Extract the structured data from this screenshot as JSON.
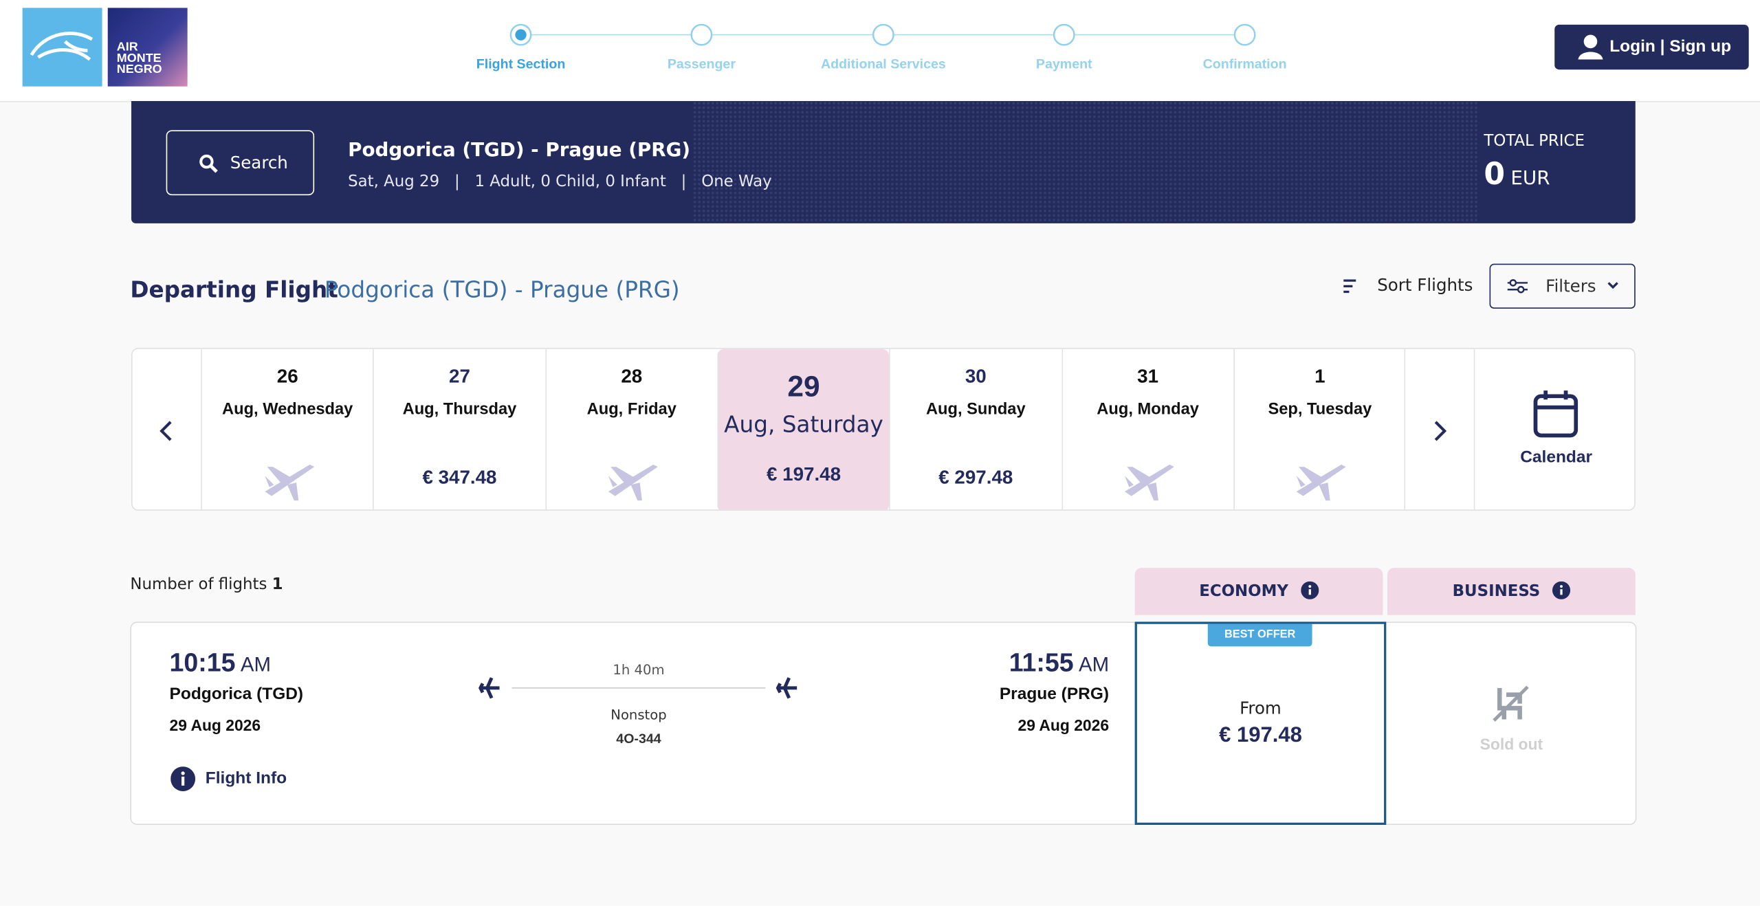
{
  "header": {
    "logo": [
      "AIR",
      "MONTE",
      "NEGRO"
    ],
    "steps": [
      "Flight Section",
      "Passenger",
      "Additional Services",
      "Payment",
      "Confirmation"
    ],
    "login": "Login | Sign up"
  },
  "search_bar": {
    "button": "Search",
    "route": "Podgorica (TGD) - Prague (PRG)",
    "date": "Sat, Aug 29",
    "separator": "|",
    "passengers": "1 Adult, 0 Child, 0 Infant",
    "trip_type": "One Way",
    "total_label": "TOTAL PRICE",
    "total_amount": "0",
    "currency": "EUR"
  },
  "departing": {
    "title": "Departing Flight",
    "route": "Podgorica (TGD) - Prague (PRG)",
    "sort": "Sort Flights",
    "filters": "Filters"
  },
  "dates": [
    {
      "day": "26",
      "label": "Aug, Wednesday",
      "price": null
    },
    {
      "day": "27",
      "label": "Aug, Thursday",
      "price": "€ 347.48"
    },
    {
      "day": "28",
      "label": "Aug, Friday",
      "price": null
    },
    {
      "day": "29",
      "label": "Aug, Saturday",
      "price": "€ 197.48"
    },
    {
      "day": "30",
      "label": "Aug, Sunday",
      "price": "€ 297.48"
    },
    {
      "day": "31",
      "label": "Aug, Monday",
      "price": null
    },
    {
      "day": "1",
      "label": "Sep, Tuesday",
      "price": null
    }
  ],
  "calendar": "Calendar",
  "results": {
    "count_label": "Number of flights",
    "count": "1",
    "economy": "ECONOMY",
    "business": "BUSINESS"
  },
  "flight": {
    "dep_time": "10:15",
    "dep_ampm": "AM",
    "dep_city": "Podgorica (TGD)",
    "dep_date": "29 Aug 2026",
    "duration": "1h 40m",
    "stops": "Nonstop",
    "number": "4O-344",
    "arr_time": "11:55",
    "arr_ampm": "AM",
    "arr_city": "Prague (PRG)",
    "arr_date": "29 Aug 2026",
    "info": "Flight Info",
    "badge": "BEST OFFER",
    "from": "From",
    "economy_price": "€ 197.48",
    "business_status": "Sold out"
  }
}
